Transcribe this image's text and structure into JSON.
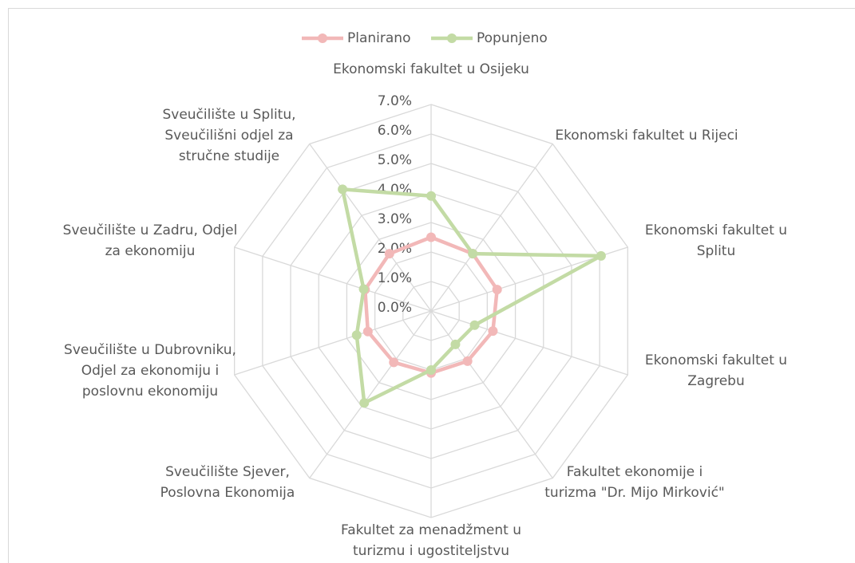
{
  "chart_data": {
    "type": "radar",
    "categories": [
      "Ekonomski fakultet u Osijeku",
      "Ekonomski fakultet u Rijeci",
      "Ekonomski fakultet u Splitu",
      "Ekonomski fakultet u Zagrebu",
      "Fakultet ekonomije i turizma \"Dr. Mijo Mirković\"",
      "Fakultet za menadžment u turizmu i ugostiteljstvu",
      "Sveučilište Sjever, Poslovna Ekonomija",
      "Sveučilište u Dubrovniku, Odjel za ekonomiju i poslovnu ekonomiju",
      "Sveučilište u Zadru, Odjel za ekonomiju",
      "Sveučilište u Splitu, Sveučilišni odjel za stručne studije"
    ],
    "series": [
      {
        "name": "Planirano",
        "color": "#f2b8b8",
        "values": [
          2.5,
          2.4,
          2.35,
          2.2,
          2.1,
          2.1,
          2.15,
          2.25,
          2.35,
          2.4
        ]
      },
      {
        "name": "Popunjeno",
        "color": "#c3dba5",
        "values": [
          3.9,
          2.4,
          6.05,
          1.55,
          1.4,
          2.0,
          3.85,
          2.65,
          2.4,
          5.1
        ]
      }
    ],
    "ylim": [
      0,
      7
    ],
    "yticks": [
      {
        "value": 0,
        "label": "0.0%"
      },
      {
        "value": 1,
        "label": "1.0%"
      },
      {
        "value": 2,
        "label": "2.0%"
      },
      {
        "value": 3,
        "label": "3.0%"
      },
      {
        "value": 4,
        "label": "4.0%"
      },
      {
        "value": 5,
        "label": "5.0%"
      },
      {
        "value": 6,
        "label": "6.0%"
      },
      {
        "value": 7,
        "label": "7.0%"
      }
    ],
    "grid": true,
    "legend": "top"
  }
}
